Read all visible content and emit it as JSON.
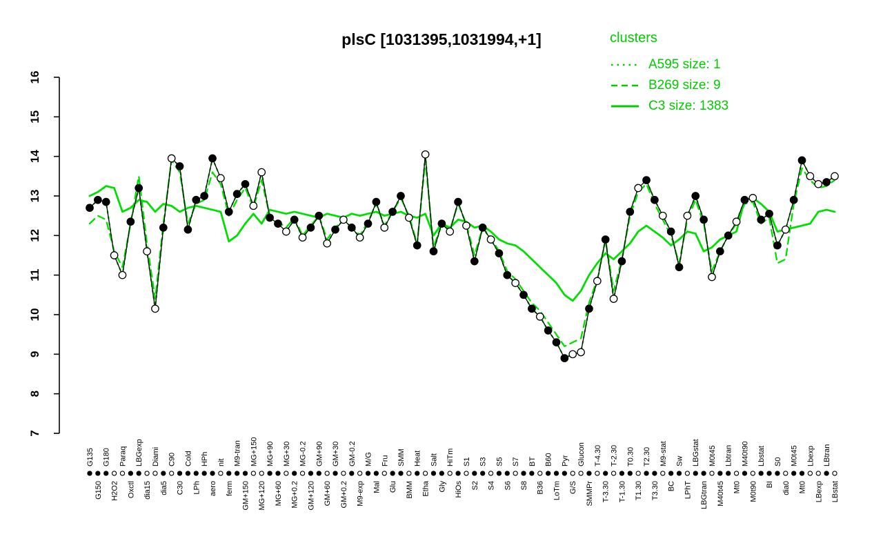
{
  "title": "plsC [1031395,1031994,+1]",
  "legend": {
    "title": "clusters",
    "color": "#00cc00",
    "entries": [
      {
        "label": "A595 size: 1",
        "style": "dotted"
      },
      {
        "label": "B269 size: 9",
        "style": "dashed"
      },
      {
        "label": "C3 size: 1383",
        "style": "solid"
      }
    ]
  },
  "chart_data": {
    "type": "line",
    "title": "plsC [1031395,1031994,+1]",
    "ylim": [
      7,
      16
    ],
    "yticks": [
      7,
      8,
      9,
      10,
      11,
      12,
      13,
      14,
      15,
      16
    ],
    "grid": false,
    "legend_position": "top-right",
    "gene_color": "#000000",
    "cluster_color": "#00e000",
    "categories": [
      "G135",
      "G150",
      "G180",
      "H2O2",
      "Paraq",
      "Oxctl",
      "LBGexp",
      "dia15",
      "Diami",
      "dia5",
      "C90",
      "C30",
      "Cold",
      "LPh",
      "HPh",
      "aero",
      "nit",
      "ferm",
      "M9-tran",
      "GM+150",
      "MG+150",
      "MG+120",
      "MG+90",
      "MG+60",
      "MG+30",
      "MG+0.2",
      "MG-0.2",
      "GM+120",
      "GM+90",
      "GM+60",
      "GM+30",
      "GM+0.2",
      "GM-0.2",
      "M9-exp",
      "M/G",
      "Mal",
      "Fru",
      "Glu",
      "SMM",
      "BMM",
      "Heat",
      "Etha",
      "Salt",
      "Gly",
      "HiTm",
      "HiOs",
      "S1",
      "S2",
      "S3",
      "S4",
      "S5",
      "S6",
      "S7",
      "S8",
      "BT",
      "B36",
      "B60",
      "LoTm",
      "Pyr",
      "G/S",
      "Glucon",
      "SMMPr",
      "T-4.30",
      "T-3.30",
      "T-2.30",
      "T-1.30",
      "T0.30",
      "T1.30",
      "T2.30",
      "T3.30",
      "M9-stat",
      "BC",
      "Sw",
      "LPhT",
      "LBGstat",
      "LBGtran",
      "M0t45",
      "M40t45",
      "Lbtran",
      "Mt0",
      "M40t90",
      "M0t90",
      "Lbstat",
      "BI",
      "S0",
      "dia0",
      "M0t45",
      "Mt0",
      "Lbexp",
      "LBexp",
      "LBtran",
      "LBstat"
    ],
    "point_filled": [
      true,
      true,
      true,
      false,
      false,
      true,
      true,
      false,
      false,
      true,
      false,
      true,
      true,
      true,
      true,
      true,
      false,
      true,
      true,
      true,
      false,
      false,
      true,
      true,
      false,
      true,
      false,
      true,
      true,
      false,
      true,
      false,
      true,
      false,
      true,
      true,
      false,
      true,
      true,
      false,
      true,
      false,
      true,
      true,
      false,
      true,
      false,
      true,
      true,
      false,
      true,
      true,
      false,
      true,
      true,
      false,
      true,
      true,
      true,
      false,
      false,
      true,
      false,
      true,
      false,
      true,
      true,
      false,
      true,
      true,
      false,
      true,
      true,
      false,
      true,
      true,
      false,
      true,
      true,
      false,
      true,
      false,
      true,
      true,
      true,
      false,
      true,
      true,
      false,
      false,
      true,
      false
    ],
    "series": [
      {
        "name": "A595",
        "role": "cluster",
        "size": 1,
        "style": "dotted",
        "color": "#00e000",
        "values": [
          12.7,
          12.9,
          12.85,
          11.5,
          11.0,
          12.35,
          13.2,
          11.6,
          10.15,
          12.2,
          13.95,
          13.75,
          12.15,
          12.9,
          13.0,
          13.95,
          13.45,
          12.6,
          13.05,
          13.3,
          12.75,
          13.6,
          12.45,
          12.3,
          12.1,
          12.4,
          11.95,
          12.2,
          12.5,
          11.8,
          12.15,
          12.4,
          12.2,
          11.95,
          12.3,
          12.85,
          12.2,
          12.6,
          13.0,
          12.45,
          11.75,
          14.05,
          11.6,
          12.3,
          12.1,
          12.85,
          12.25,
          11.35,
          12.2,
          11.9,
          11.55,
          11.0,
          10.8,
          10.5,
          10.15,
          9.95,
          9.6,
          9.3,
          8.9,
          9.0,
          9.05,
          10.15,
          10.85,
          11.9,
          10.4,
          11.35,
          12.6,
          13.2,
          13.4,
          12.9,
          12.5,
          12.1,
          11.2,
          12.5,
          13.0,
          12.4,
          10.95,
          11.6,
          12.0,
          12.35,
          12.9,
          12.95,
          12.4,
          12.55,
          11.75,
          12.15,
          12.9,
          13.9,
          13.5,
          13.3,
          13.35,
          13.5
        ]
      },
      {
        "name": "B269",
        "role": "cluster",
        "size": 9,
        "style": "dashed",
        "color": "#00e000",
        "values": [
          12.3,
          12.5,
          12.4,
          11.6,
          11.2,
          12.3,
          13.5,
          11.8,
          10.4,
          12.3,
          13.9,
          13.6,
          12.3,
          12.8,
          12.9,
          13.6,
          13.3,
          12.5,
          12.9,
          13.2,
          12.7,
          13.4,
          12.5,
          12.35,
          12.2,
          12.45,
          12.0,
          12.25,
          12.5,
          11.9,
          12.2,
          12.4,
          12.25,
          12.0,
          12.35,
          12.8,
          12.25,
          12.6,
          12.95,
          12.5,
          11.8,
          13.9,
          11.7,
          12.3,
          12.15,
          12.8,
          12.3,
          11.5,
          12.2,
          11.95,
          11.6,
          11.1,
          10.9,
          10.6,
          10.3,
          10.1,
          9.8,
          9.5,
          9.2,
          9.3,
          9.4,
          10.3,
          10.9,
          11.9,
          10.6,
          11.4,
          12.5,
          13.1,
          13.3,
          12.8,
          12.4,
          12.0,
          11.3,
          12.4,
          12.9,
          12.3,
          11.1,
          11.6,
          12.0,
          12.3,
          12.8,
          12.85,
          12.3,
          12.45,
          11.3,
          11.4,
          12.8,
          13.7,
          13.4,
          13.2,
          13.25,
          13.4
        ]
      },
      {
        "name": "C3",
        "role": "cluster",
        "size": 1383,
        "style": "solid",
        "color": "#00e000",
        "values": [
          13.0,
          13.1,
          13.25,
          13.2,
          12.6,
          12.7,
          12.9,
          12.85,
          12.6,
          12.8,
          12.75,
          12.6,
          12.7,
          12.75,
          12.7,
          12.65,
          12.6,
          11.85,
          12.0,
          12.3,
          12.55,
          12.3,
          12.65,
          12.6,
          12.55,
          12.6,
          12.55,
          12.5,
          12.45,
          12.55,
          12.5,
          12.45,
          12.55,
          12.5,
          12.55,
          12.6,
          12.5,
          12.55,
          12.6,
          12.5,
          12.45,
          12.55,
          12.0,
          12.3,
          12.2,
          12.4,
          12.35,
          12.2,
          12.25,
          12.1,
          11.9,
          11.8,
          11.75,
          11.6,
          11.4,
          11.2,
          11.0,
          10.8,
          10.5,
          10.35,
          10.6,
          11.0,
          11.3,
          11.55,
          11.4,
          11.6,
          11.8,
          12.1,
          12.25,
          12.1,
          11.95,
          11.75,
          11.9,
          12.1,
          12.05,
          11.6,
          11.7,
          11.9,
          12.0,
          12.1,
          12.9,
          12.95,
          12.8,
          12.6,
          12.1,
          12.15,
          12.2,
          12.25,
          12.3,
          12.6,
          12.65,
          12.6
        ]
      },
      {
        "name": "plsC",
        "role": "gene",
        "style": "solid",
        "color": "#000000",
        "marker": "circle",
        "values": [
          12.7,
          12.9,
          12.85,
          11.5,
          11.0,
          12.35,
          13.2,
          11.6,
          10.15,
          12.2,
          13.95,
          13.75,
          12.15,
          12.9,
          13.0,
          13.95,
          13.45,
          12.6,
          13.05,
          13.3,
          12.75,
          13.6,
          12.45,
          12.3,
          12.1,
          12.4,
          11.95,
          12.2,
          12.5,
          11.8,
          12.15,
          12.4,
          12.2,
          11.95,
          12.3,
          12.85,
          12.2,
          12.6,
          13.0,
          12.45,
          11.75,
          14.05,
          11.6,
          12.3,
          12.1,
          12.85,
          12.25,
          11.35,
          12.2,
          11.9,
          11.55,
          11.0,
          10.8,
          10.5,
          10.15,
          9.95,
          9.6,
          9.3,
          8.9,
          9.0,
          9.05,
          10.15,
          10.85,
          11.9,
          10.4,
          11.35,
          12.6,
          13.2,
          13.4,
          12.9,
          12.5,
          12.1,
          11.2,
          12.5,
          13.0,
          12.4,
          10.95,
          11.6,
          12.0,
          12.35,
          12.9,
          12.95,
          12.4,
          12.55,
          11.75,
          12.15,
          12.9,
          13.9,
          13.5,
          13.3,
          13.35,
          13.5
        ]
      }
    ]
  }
}
